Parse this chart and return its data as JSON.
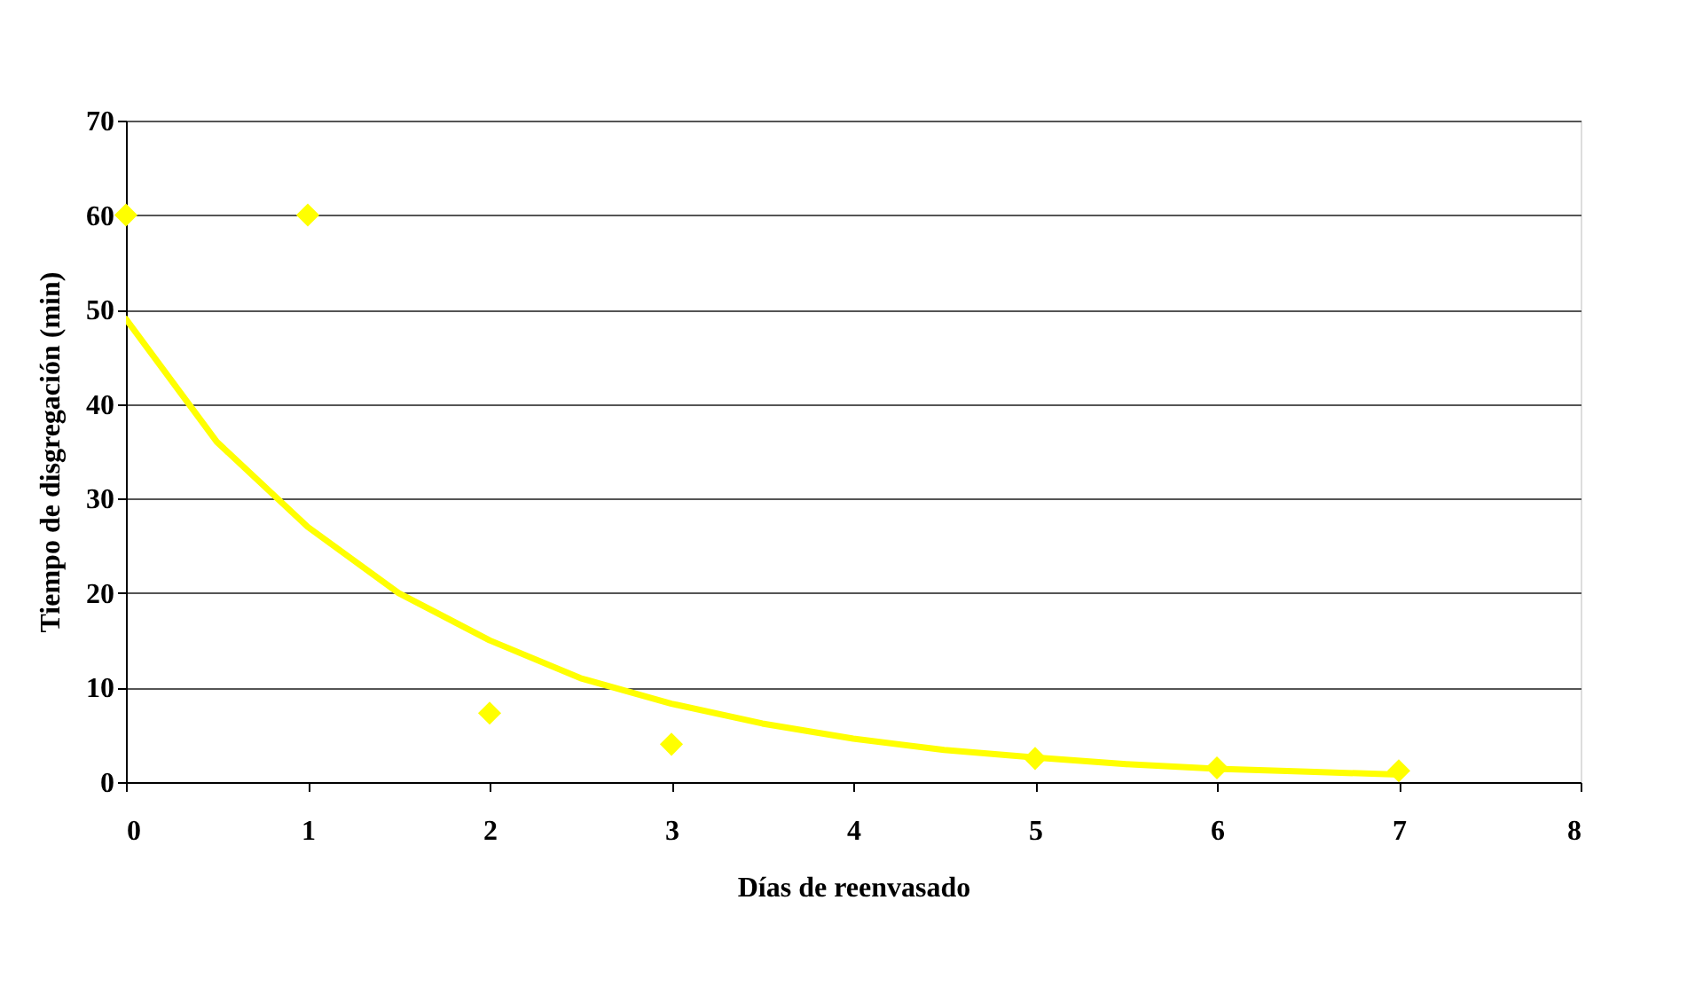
{
  "chart_data": {
    "type": "scatter",
    "xlabel": "Días de reenvasado",
    "ylabel": "Tiempo de disgregación (min)",
    "xlim": [
      0,
      8
    ],
    "xticks": [
      0,
      1,
      2,
      3,
      4,
      5,
      6,
      7,
      8
    ],
    "ylim": [
      0,
      70
    ],
    "yticks": [
      0,
      10,
      20,
      30,
      40,
      50,
      60,
      70
    ],
    "grid": "y",
    "series": [
      {
        "color": "#ffff00",
        "marker": "diamond",
        "x": [
          0,
          1,
          2,
          3,
          5,
          6,
          7
        ],
        "values": [
          60,
          60,
          7.3,
          4,
          2.5,
          1.5,
          1.2
        ]
      },
      {
        "type": "line",
        "color": "#ffff00",
        "line_style": "solid",
        "x": [
          0,
          0.5,
          1,
          1.5,
          2,
          2.5,
          3,
          3.5,
          4,
          4.5,
          5,
          5.5,
          6,
          6.5,
          7
        ],
        "values": [
          49,
          36,
          27,
          20,
          15,
          11,
          8.3,
          6.2,
          4.6,
          3.4,
          2.6,
          1.9,
          1.4,
          1.1,
          0.8
        ]
      }
    ]
  }
}
